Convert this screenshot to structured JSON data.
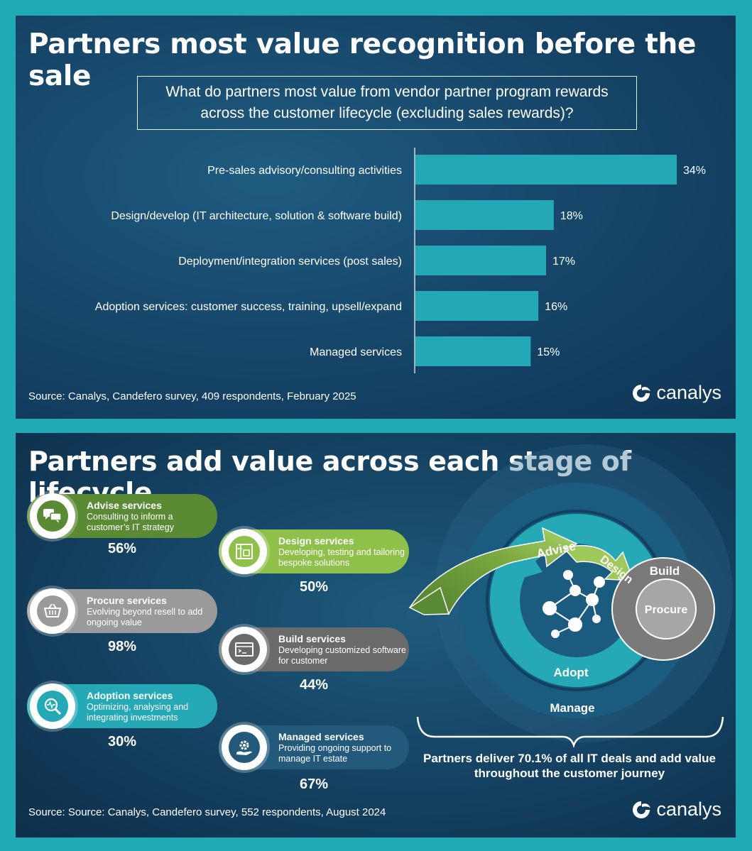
{
  "top_panel": {
    "title": "Partners most value recognition before the sale",
    "question": "What do partners most value from vendor partner program rewards across the customer lifecycle (excluding sales rewards)?",
    "source": "Source: Canalys, Candefero survey, 409 respondents, February 2025",
    "logo_text": "canalys"
  },
  "chart_data": {
    "type": "bar",
    "orientation": "horizontal",
    "categories": [
      "Pre-sales advisory/consulting activities",
      "Design/develop (IT architecture, solution & software build)",
      "Deployment/integration services (post sales)",
      "Adoption services: customer success, training, upsell/expand",
      "Managed services"
    ],
    "values": [
      34,
      18,
      17,
      16,
      15
    ],
    "value_labels": [
      "34%",
      "18%",
      "17%",
      "16%",
      "15%"
    ],
    "title": "",
    "xlabel": "",
    "ylabel": "",
    "xlim": [
      0,
      34
    ],
    "grid": false,
    "bar_color": "#24a8b8"
  },
  "bottom_panel": {
    "title": "Partners add value across each stage of lifecycle",
    "source": "Source: Source: Canalys, Candefero survey, 552 respondents, August 2024",
    "logo_text": "canalys",
    "services": [
      {
        "name": "Advise services",
        "desc": "Consulting to inform a customer’s IT strategy",
        "pct": "56%",
        "color": "#5b8a35",
        "icon": "chat-bubbles-icon"
      },
      {
        "name": "Design services",
        "desc": "Developing, testing and tailoring bespoke solutions",
        "pct": "50%",
        "color": "#8fc04a",
        "icon": "blueprint-icon"
      },
      {
        "name": "Procure services",
        "desc": "Evolving beyond resell to add ongoing value",
        "pct": "98%",
        "color": "#9a9a9a",
        "icon": "basket-icon"
      },
      {
        "name": "Build services",
        "desc": "Developing customized software for customer",
        "pct": "44%",
        "color": "#6a6a6a",
        "icon": "code-window-icon"
      },
      {
        "name": "Adoption services",
        "desc": "Optimizing, analysing and integrating investments",
        "pct": "30%",
        "color": "#26a9b7",
        "icon": "magnifier-icon"
      },
      {
        "name": "Managed services",
        "desc": "Providing ongoing support to manage IT estate",
        "pct": "67%",
        "color": "#235a7c",
        "icon": "gear-hand-icon"
      }
    ],
    "cycle": {
      "advise": "Advise",
      "design": "Design",
      "build": "Build",
      "procure": "Procure",
      "adopt": "Adopt",
      "manage": "Manage"
    },
    "journey_text": "Partners deliver 70.1% of all IT deals and add value throughout the customer journey"
  }
}
